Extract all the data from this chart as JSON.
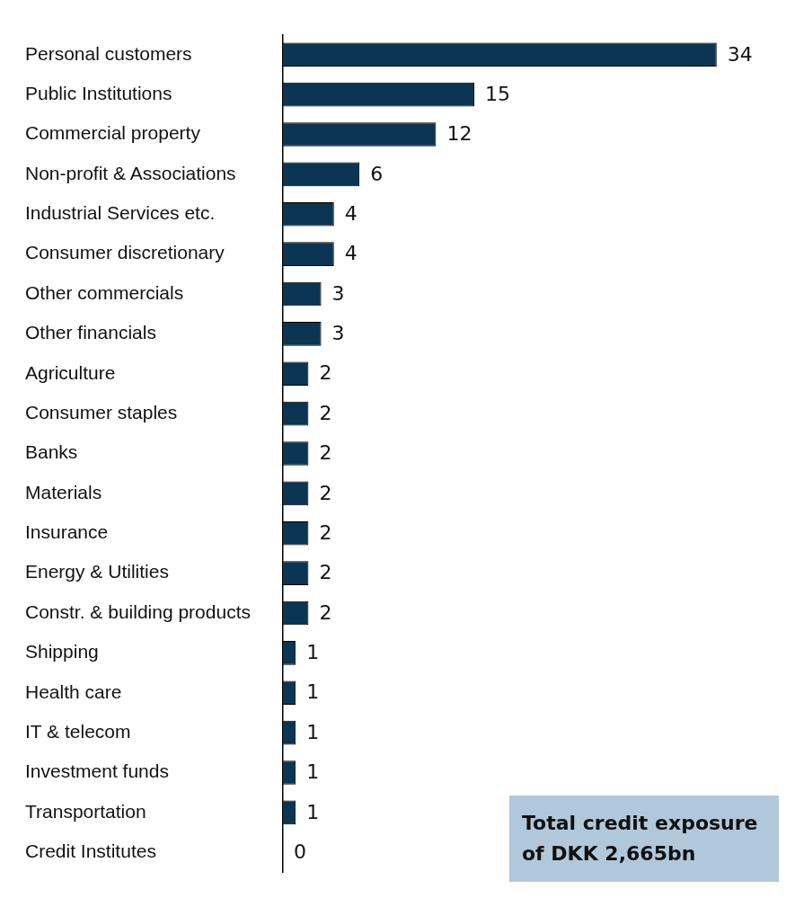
{
  "chart_data": {
    "type": "bar",
    "orientation": "horizontal",
    "categories": [
      "Personal customers",
      "Public Institutions",
      "Commercial property",
      "Non-profit & Associations",
      "Industrial Services etc.",
      "Consumer discretionary",
      "Other commercials",
      "Other financials",
      "Agriculture",
      "Consumer staples",
      "Banks",
      "Materials",
      "Insurance",
      "Energy & Utilities",
      "Constr. & building products",
      "Shipping",
      "Health care",
      "IT & telecom",
      "Investment funds",
      "Transportation",
      "Credit Institutes"
    ],
    "values": [
      34,
      15,
      12,
      6,
      4,
      4,
      3,
      3,
      2,
      2,
      2,
      2,
      2,
      2,
      2,
      1,
      1,
      1,
      1,
      1,
      0
    ],
    "color": "#0b3552",
    "data_labels": true,
    "grid": false,
    "tick_labels": "y",
    "annotations": [
      "Total credit exposure of DKK 2,665bn"
    ]
  }
}
